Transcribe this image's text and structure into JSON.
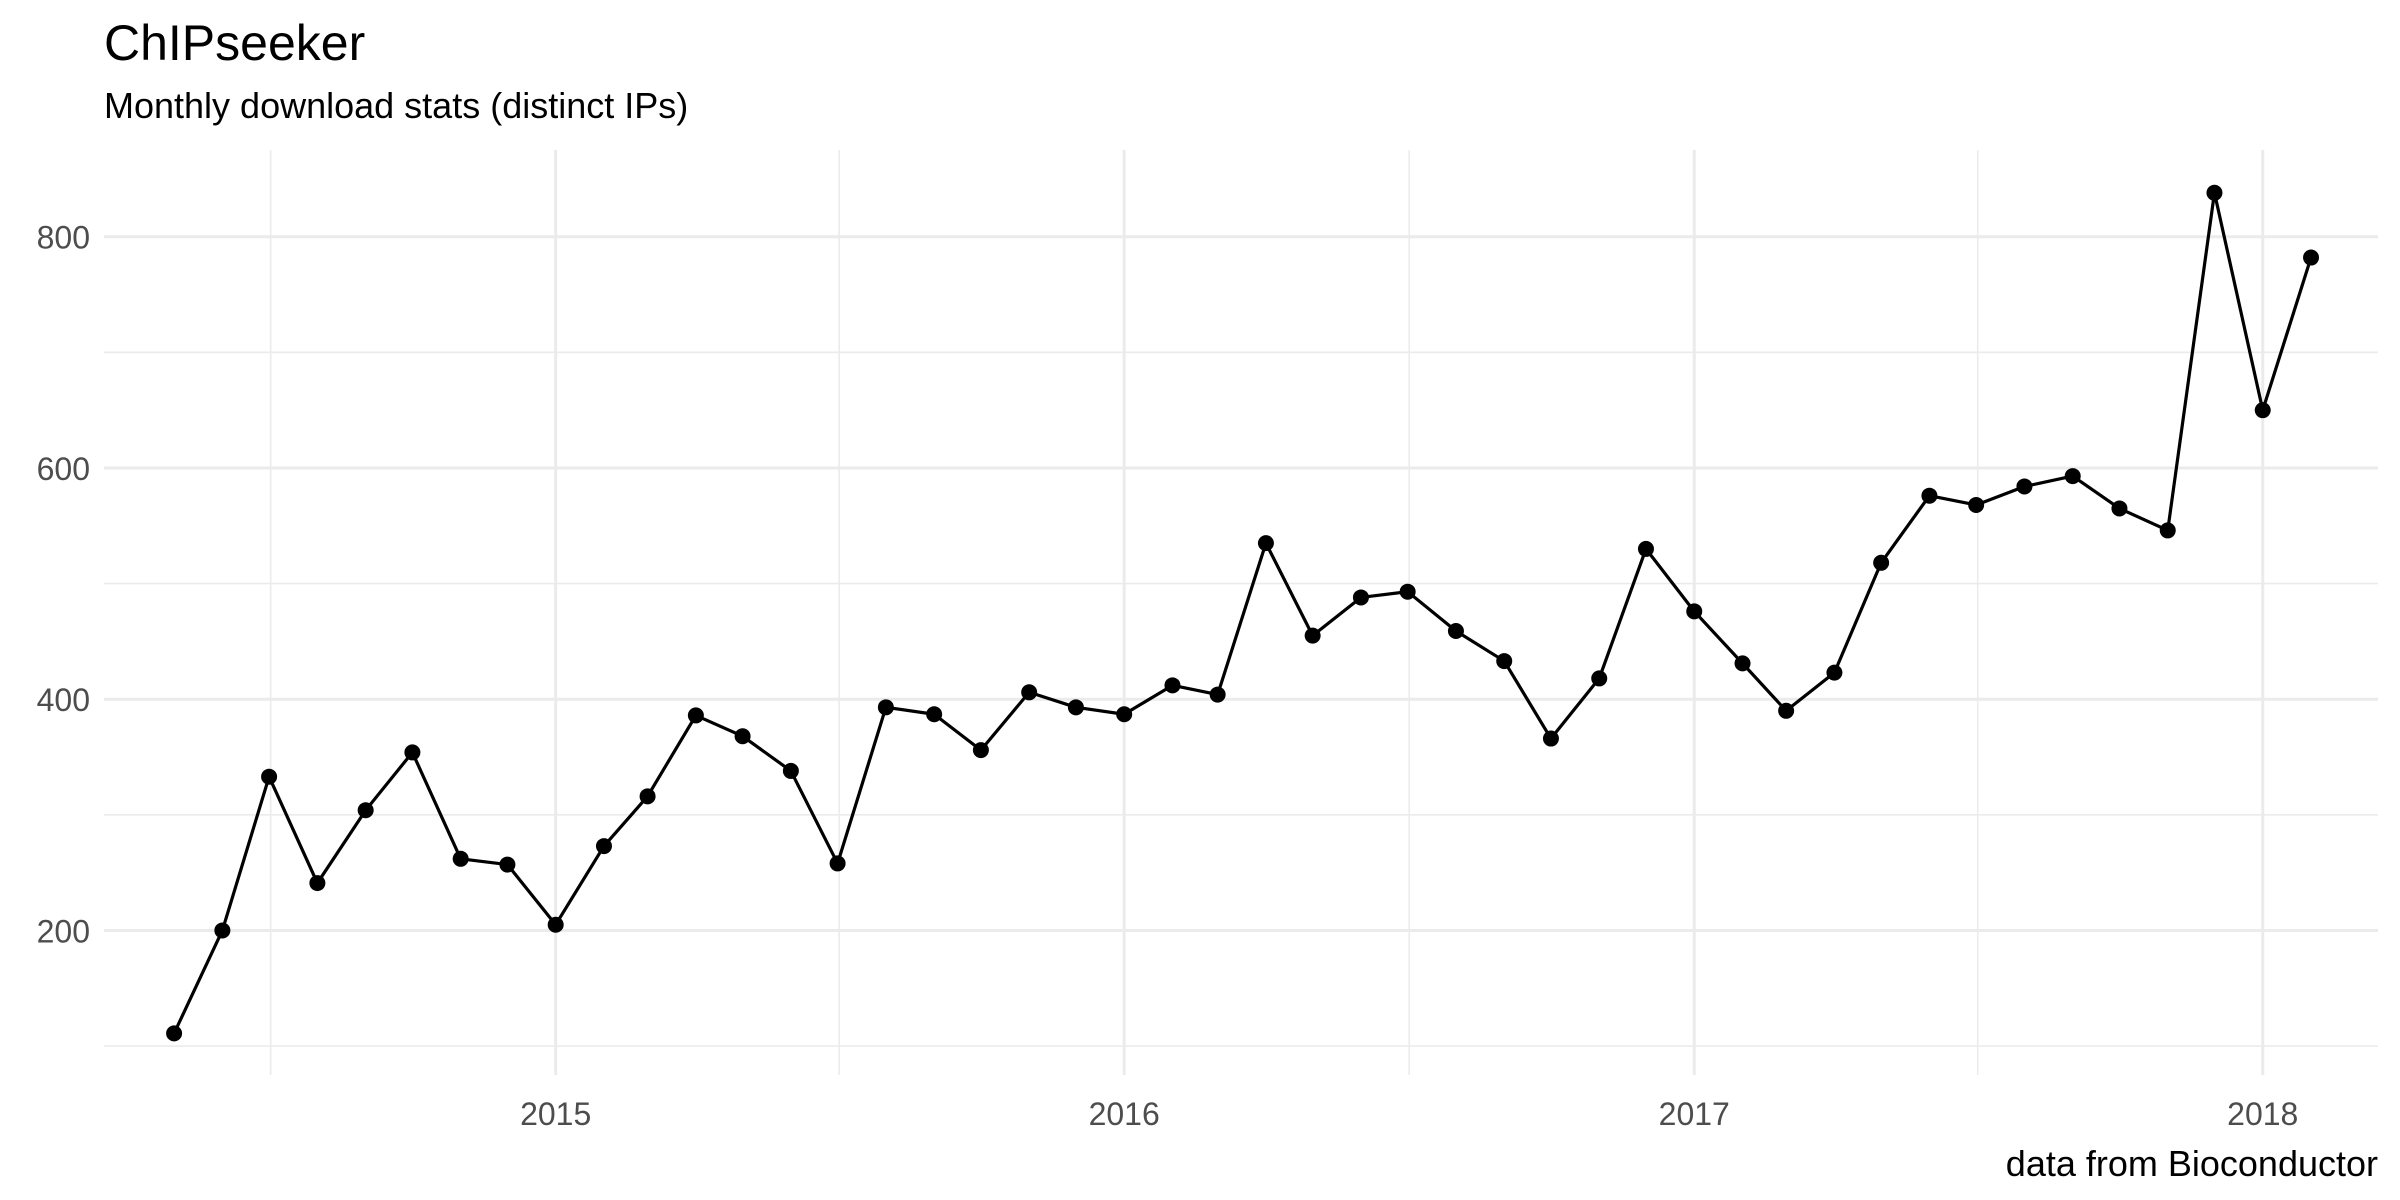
{
  "chart_data": {
    "type": "line",
    "title": "ChIPseeker",
    "subtitle": "Monthly download stats (distinct IPs)",
    "caption": "data from Bioconductor",
    "xlabel": "",
    "ylabel": "",
    "x_tick_labels": [
      "2015",
      "2016",
      "2017",
      "2018"
    ],
    "y_tick_labels": [
      "200",
      "400",
      "600",
      "800"
    ],
    "y_ticks": [
      200,
      400,
      600,
      800
    ],
    "ylim": [
      75,
      875
    ],
    "xlim": [
      "2014-03-17",
      "2018-03-16"
    ],
    "grid": true,
    "legend": "none",
    "line_color": "#000000",
    "point_color": "#000000",
    "grid_color": "#ebebeb",
    "series": [
      {
        "x": [
          "2014-05-01",
          "2014-06-01",
          "2014-07-01",
          "2014-08-01",
          "2014-09-01",
          "2014-10-01",
          "2014-11-01",
          "2014-12-01",
          "2015-01-01",
          "2015-02-01",
          "2015-03-01",
          "2015-04-01",
          "2015-05-01",
          "2015-06-01",
          "2015-07-01",
          "2015-08-01",
          "2015-09-01",
          "2015-10-01",
          "2015-11-01",
          "2015-12-01",
          "2016-01-01",
          "2016-02-01",
          "2016-03-01",
          "2016-04-01",
          "2016-05-01",
          "2016-06-01",
          "2016-07-01",
          "2016-08-01",
          "2016-09-01",
          "2016-10-01",
          "2016-11-01",
          "2016-12-01",
          "2017-01-01",
          "2017-02-01",
          "2017-03-01",
          "2017-04-01",
          "2017-05-01",
          "2017-06-01",
          "2017-07-01",
          "2017-08-01",
          "2017-09-01",
          "2017-10-01",
          "2017-11-01",
          "2017-12-01",
          "2018-01-01",
          "2018-02-01"
        ],
        "values": [
          111,
          200,
          333,
          241,
          304,
          354,
          262,
          257,
          205,
          273,
          316,
          386,
          368,
          338,
          258,
          393,
          387,
          356,
          406,
          393,
          387,
          412,
          404,
          535,
          455,
          488,
          493,
          459,
          433,
          366,
          418,
          530,
          476,
          431,
          390,
          423,
          518,
          576,
          568,
          584,
          593,
          565,
          546,
          838,
          650,
          782
        ]
      }
    ]
  }
}
